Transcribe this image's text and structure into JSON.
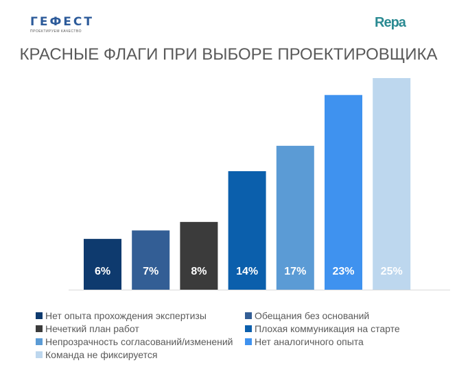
{
  "logos": {
    "left": "ГЕФЕСТ",
    "left_tagline": "ПРОЕКТИРУЕМ КАЧЕСТВО",
    "right": "Repa"
  },
  "chart_data": {
    "type": "bar",
    "title": "КРАСНЫЕ ФЛАГИ ПРИ ВЫБОРЕ ПРОЕКТИРОВЩИКА",
    "categories": [
      "Нет опыта прохождения экспертизы",
      "Обещания без оснований",
      "Нечеткий план работ",
      "Плохая коммуникация на старте",
      "Непрозрачность согласований/изменений",
      "Нет аналогичного опыта",
      "Команда не фиксируется"
    ],
    "values": [
      6,
      7,
      8,
      14,
      17,
      23,
      25
    ],
    "labels": [
      "6%",
      "7%",
      "8%",
      "14%",
      "17%",
      "23%",
      "25%"
    ],
    "colors": [
      "#0e3a6e",
      "#335e95",
      "#3b3b3b",
      "#0b5fac",
      "#5b9bd5",
      "#3f92ef",
      "#bdd7ee"
    ],
    "ylim": [
      0,
      25
    ],
    "grid": false,
    "legend": "bottom"
  }
}
